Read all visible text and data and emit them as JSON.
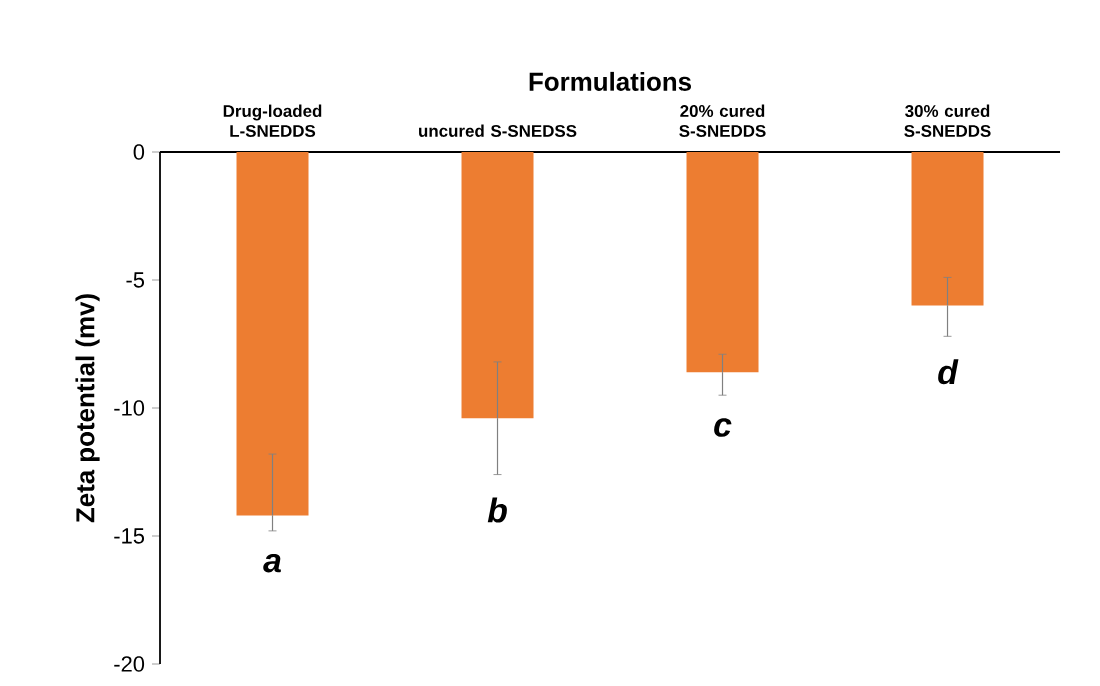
{
  "chart_data": {
    "type": "bar",
    "xlabel": "Formulations",
    "ylabel": "Zeta potential (mv)",
    "categories": [
      "Drug-loaded L-SNEDDS",
      "uncured S-SNEDSS",
      "20% cured S-SNEDDS",
      "30% cured S-SNEDDS"
    ],
    "values": [
      -14.2,
      -10.4,
      -8.6,
      -6.0
    ],
    "errors": [
      [
        -14.8,
        -11.8
      ],
      [
        -12.6,
        -8.2
      ],
      [
        -9.5,
        -7.9
      ],
      [
        -7.2,
        -4.9
      ]
    ],
    "color": "#ed7d31",
    "ylim": [
      -20,
      0
    ],
    "yticks": [
      -20,
      -15,
      -10,
      -5,
      0
    ],
    "grid": false,
    "annotations": [
      "a",
      "b",
      "c",
      "d"
    ]
  }
}
